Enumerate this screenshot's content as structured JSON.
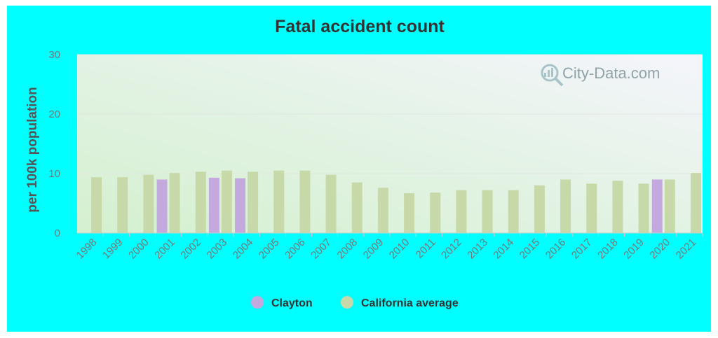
{
  "chart_data": {
    "type": "bar",
    "title": "Fatal accident count",
    "xlabel": "",
    "ylabel": "per 100k population",
    "ylim": [
      0,
      30
    ],
    "yticks": [
      0,
      10,
      20,
      30
    ],
    "grid": true,
    "legend_position": "bottom",
    "categories": [
      "1998",
      "1999",
      "2000",
      "2001",
      "2002",
      "2003",
      "2004",
      "2005",
      "2006",
      "2007",
      "2008",
      "2009",
      "2010",
      "2011",
      "2012",
      "2013",
      "2014",
      "2015",
      "2016",
      "2017",
      "2018",
      "2019",
      "2020",
      "2021"
    ],
    "series": [
      {
        "name": "Clayton",
        "color": "#c3a9dd",
        "values": [
          null,
          null,
          null,
          9.0,
          null,
          9.3,
          9.2,
          null,
          null,
          null,
          null,
          null,
          null,
          null,
          null,
          null,
          null,
          null,
          null,
          null,
          null,
          null,
          9.0,
          null
        ]
      },
      {
        "name": "California average",
        "color": "#c8d9a9",
        "values": [
          9.4,
          9.4,
          9.8,
          10.1,
          10.3,
          10.5,
          10.3,
          10.5,
          10.5,
          9.8,
          8.5,
          7.6,
          6.7,
          6.8,
          7.2,
          7.2,
          7.2,
          8.0,
          9.0,
          8.3,
          8.8,
          8.3,
          9.0,
          10.1
        ]
      }
    ],
    "watermark": "City-Data.com"
  },
  "colors": {
    "panel_bg": "#00ffff",
    "clayton": "#c3a9dd",
    "california": "#c8d9a9"
  }
}
